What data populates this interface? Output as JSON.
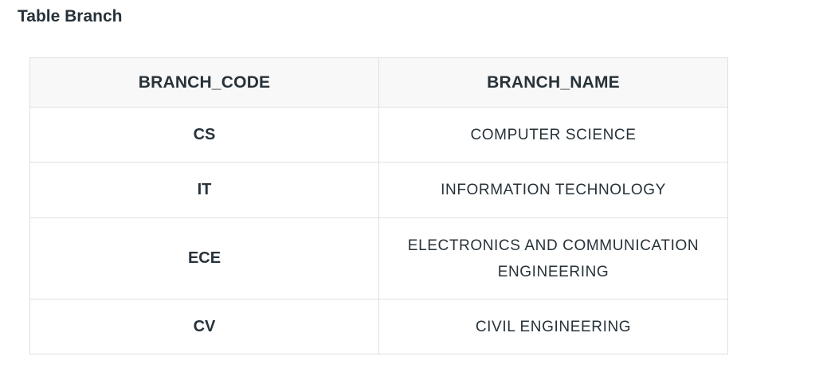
{
  "page": {
    "title": "Table Branch"
  },
  "table": {
    "columns": [
      "BRANCH_CODE",
      "BRANCH_NAME"
    ],
    "rows": [
      {
        "branch_code": "CS",
        "branch_name": "COMPUTER SCIENCE"
      },
      {
        "branch_code": "IT",
        "branch_name": "INFORMATION TECHNOLOGY"
      },
      {
        "branch_code": "ECE",
        "branch_name": "ELECTRONICS AND COMMUNICATION ENGINEERING"
      },
      {
        "branch_code": "CV",
        "branch_name": "CIVIL ENGINEERING"
      }
    ]
  },
  "colors": {
    "text": "#273239",
    "header_background": "#f8f8f8",
    "border": "#e0e0e0",
    "page_background": "#ffffff"
  }
}
